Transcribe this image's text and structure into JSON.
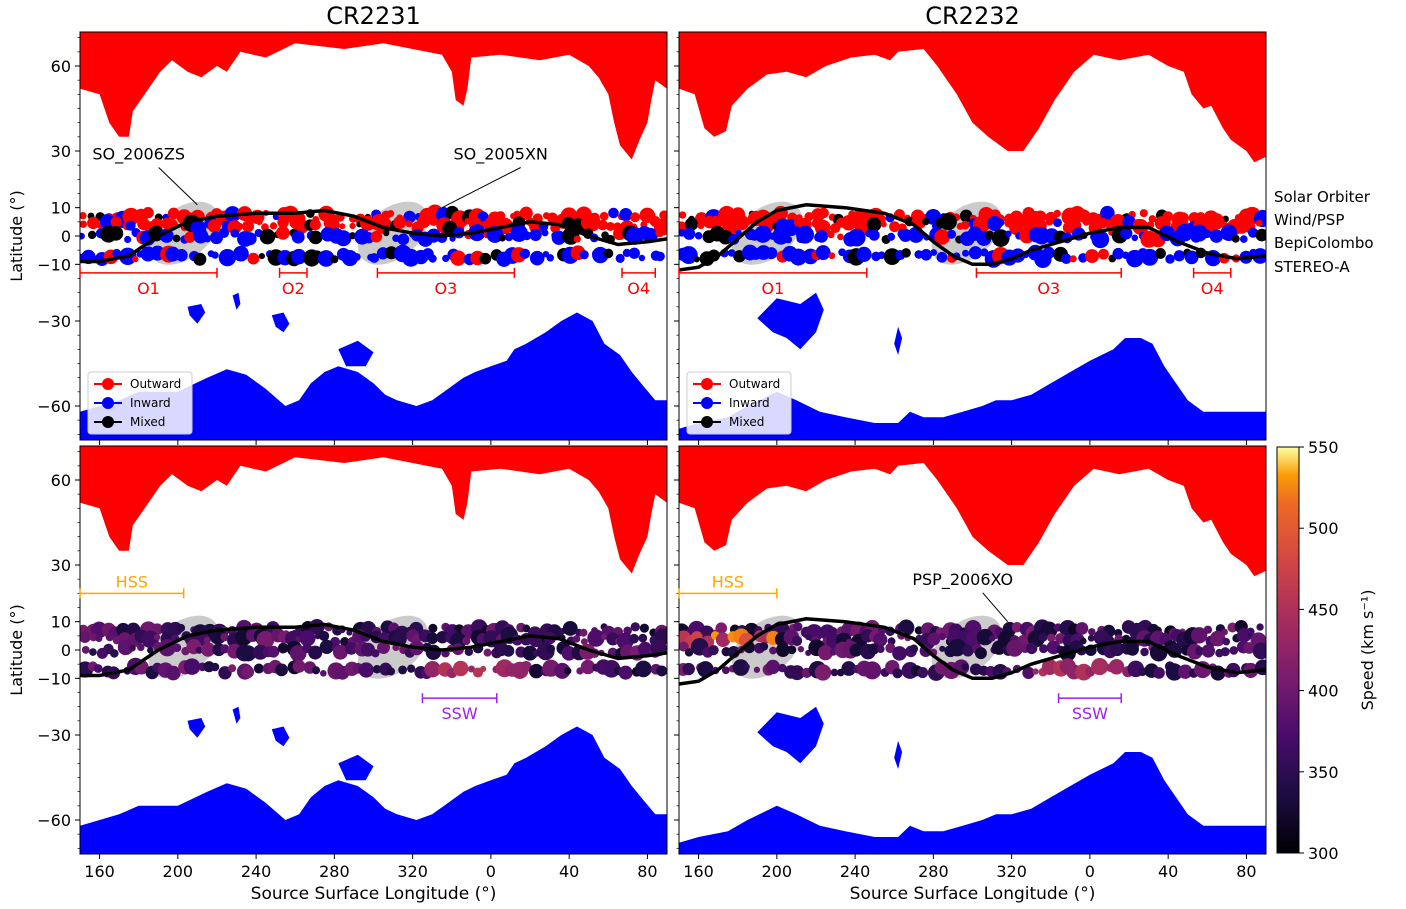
{
  "colors": {
    "outward": "#ff0000",
    "inward": "#0000ff",
    "mixed": "#000000",
    "hcs": "#000000",
    "ellipse": "#bebebe",
    "orbit_bracket": "#ff0000",
    "hss_bracket": "#ffa500",
    "ssw_bracket": "#a020f0"
  },
  "figure": {
    "xlabel": "Source Surface Longitude (°)",
    "ylabel": "Latitude (°)",
    "colorbar_label": "Speed (km s⁻¹)",
    "colorbar_ticks": [
      "300",
      "350",
      "400",
      "450",
      "500",
      "550"
    ],
    "spacecraft_labels": [
      "Solar Orbiter",
      "Wind/PSP",
      "BepiColombo",
      "STEREO-A"
    ]
  },
  "chart_data": [
    {
      "panel": "CR2231-polarity",
      "type": "scatter",
      "title": "CR2231",
      "xlabel": "",
      "ylabel": "Latitude (°)",
      "x_ticks": [
        "160",
        "200",
        "240",
        "280",
        "320",
        "0",
        "40",
        "80"
      ],
      "y_ticks": [
        "60",
        "30",
        "10",
        "0",
        "−10",
        "−30",
        "−60"
      ],
      "legend": {
        "placement": "lower-left",
        "entries": [
          "Outward",
          "Inward",
          "Mixed"
        ]
      },
      "annotations": [
        "SO_2006ZS",
        "SO_2005XN"
      ],
      "intervals": [
        {
          "label": "O1",
          "x": [
            150,
            220
          ]
        },
        {
          "label": "O2",
          "x": [
            252,
            266
          ]
        },
        {
          "label": "O3",
          "x": [
            302,
            12
          ]
        },
        {
          "label": "O4",
          "x": [
            67,
            84
          ]
        }
      ],
      "series": [
        {
          "name": "Solar Orbiter",
          "lat": 7,
          "dominant": "Outward"
        },
        {
          "name": "Wind/PSP",
          "lat": 4,
          "dominant": "Outward"
        },
        {
          "name": "BepiColombo",
          "lat": 0,
          "dominant": "Inward"
        },
        {
          "name": "STEREO-A",
          "lat": -7,
          "dominant": "Inward"
        }
      ]
    },
    {
      "panel": "CR2232-polarity",
      "type": "scatter",
      "title": "CR2232",
      "xlabel": "",
      "ylabel": "",
      "x_ticks": [
        "160",
        "200",
        "240",
        "280",
        "320",
        "0",
        "40",
        "80"
      ],
      "y_ticks": [
        "60",
        "30",
        "10",
        "0",
        "−10",
        "−30",
        "−60"
      ],
      "legend": {
        "placement": "lower-left",
        "entries": [
          "Outward",
          "Inward",
          "Mixed"
        ]
      },
      "annotations": [],
      "intervals": [
        {
          "label": "O1",
          "x": [
            150,
            246
          ]
        },
        {
          "label": "O3",
          "x": [
            302,
            16
          ]
        },
        {
          "label": "O4",
          "x": [
            53,
            72
          ]
        }
      ],
      "series": [
        {
          "name": "Solar Orbiter",
          "lat": 7,
          "dominant": "Outward"
        },
        {
          "name": "Wind/PSP",
          "lat": 4,
          "dominant": "Outward"
        },
        {
          "name": "BepiColombo",
          "lat": 1,
          "dominant": "Inward"
        },
        {
          "name": "STEREO-A",
          "lat": -6,
          "dominant": "Inward"
        }
      ]
    },
    {
      "panel": "CR2231-speed",
      "type": "scatter",
      "title": "",
      "xlabel": "Source Surface Longitude (°)",
      "ylabel": "Latitude (°)",
      "x_ticks": [
        "160",
        "200",
        "240",
        "280",
        "320",
        "0",
        "40",
        "80"
      ],
      "y_ticks": [
        "60",
        "30",
        "10",
        "0",
        "−10",
        "−30",
        "−60"
      ],
      "annotations": [],
      "intervals": [
        {
          "label": "HSS",
          "x": [
            150,
            203
          ]
        },
        {
          "label": "SSW",
          "x": [
            325,
            3
          ]
        }
      ],
      "colorbar": {
        "label": "Speed (km s⁻¹)",
        "range": [
          300,
          550
        ]
      }
    },
    {
      "panel": "CR2232-speed",
      "type": "scatter",
      "title": "",
      "xlabel": "Source Surface Longitude (°)",
      "ylabel": "",
      "x_ticks": [
        "160",
        "200",
        "240",
        "280",
        "320",
        "0",
        "40",
        "80"
      ],
      "y_ticks": [
        "60",
        "30",
        "10",
        "0",
        "−10",
        "−30",
        "−60"
      ],
      "annotations": [
        "PSP_2006XO"
      ],
      "intervals": [
        {
          "label": "HSS",
          "x": [
            150,
            200
          ]
        },
        {
          "label": "SSW",
          "x": [
            344,
            16
          ]
        }
      ],
      "colorbar": {
        "label": "Speed (km s⁻¹)",
        "range": [
          300,
          550
        ]
      }
    }
  ]
}
